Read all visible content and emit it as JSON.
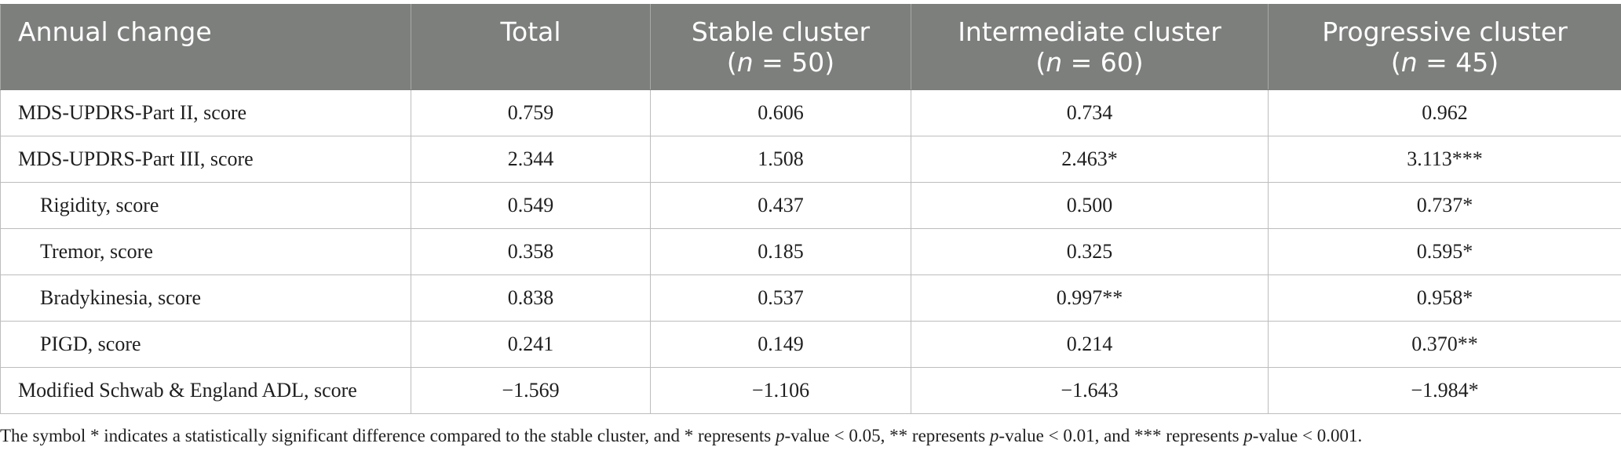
{
  "table": {
    "headers": [
      {
        "text": "Annual change",
        "n_label": "",
        "n_value": ""
      },
      {
        "text": "Total",
        "n_label": "",
        "n_value": ""
      },
      {
        "text": "Stable cluster",
        "n_label": "n",
        "n_value": " = 50"
      },
      {
        "text": "Intermediate cluster",
        "n_label": "n",
        "n_value": " = 60"
      },
      {
        "text": "Progressive cluster",
        "n_label": "n",
        "n_value": " = 45"
      }
    ],
    "rows": [
      {
        "label": "MDS-UPDRS-Part II, score",
        "indent": false,
        "values": [
          "0.759",
          "0.606",
          "0.734",
          "0.962"
        ]
      },
      {
        "label": "MDS-UPDRS-Part III, score",
        "indent": false,
        "values": [
          "2.344",
          "1.508",
          "2.463*",
          "3.113***"
        ]
      },
      {
        "label": "Rigidity, score",
        "indent": true,
        "values": [
          "0.549",
          "0.437",
          "0.500",
          "0.737*"
        ]
      },
      {
        "label": "Tremor, score",
        "indent": true,
        "values": [
          "0.358",
          "0.185",
          "0.325",
          "0.595*"
        ]
      },
      {
        "label": "Bradykinesia, score",
        "indent": true,
        "values": [
          "0.838",
          "0.537",
          "0.997**",
          "0.958*"
        ]
      },
      {
        "label": "PIGD, score",
        "indent": true,
        "values": [
          "0.241",
          "0.149",
          "0.214",
          "0.370**"
        ]
      },
      {
        "label": "Modified Schwab & England ADL, score",
        "indent": false,
        "values": [
          "−1.569",
          "−1.106",
          "−1.643",
          "−1.984*"
        ]
      }
    ]
  },
  "footnote": {
    "part1": "The symbol * indicates a statistically significant difference compared to the stable cluster, and * represents ",
    "p1": "p",
    "part2": "-value < 0.05, ** represents ",
    "p2": "p",
    "part3": "-value < 0.01, and *** represents ",
    "p3": "p",
    "part4": "-value < 0.001."
  },
  "colors": {
    "header_bg": "#7d7f7d",
    "header_text": "#ffffff",
    "grid": "#bdbdbd",
    "body_text": "#1f1f1f"
  }
}
